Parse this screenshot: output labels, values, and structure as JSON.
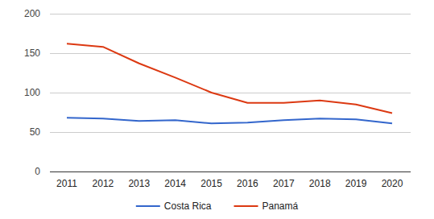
{
  "chart_data": {
    "type": "line",
    "categories": [
      "2011",
      "2012",
      "2013",
      "2014",
      "2015",
      "2016",
      "2017",
      "2018",
      "2019",
      "2020"
    ],
    "series": [
      {
        "name": "Costa Rica",
        "color": "#3366cc",
        "values": [
          68,
          67,
          64,
          65,
          61,
          62,
          65,
          67,
          66,
          61
        ]
      },
      {
        "name": "Panamá",
        "color": "#dc3912",
        "values": [
          162,
          158,
          137,
          119,
          100,
          87,
          87,
          90,
          85,
          74
        ]
      }
    ],
    "ylim": [
      0,
      200
    ],
    "yticks": [
      0,
      50,
      100,
      150,
      200
    ],
    "grid": true,
    "legend": "bottom"
  }
}
